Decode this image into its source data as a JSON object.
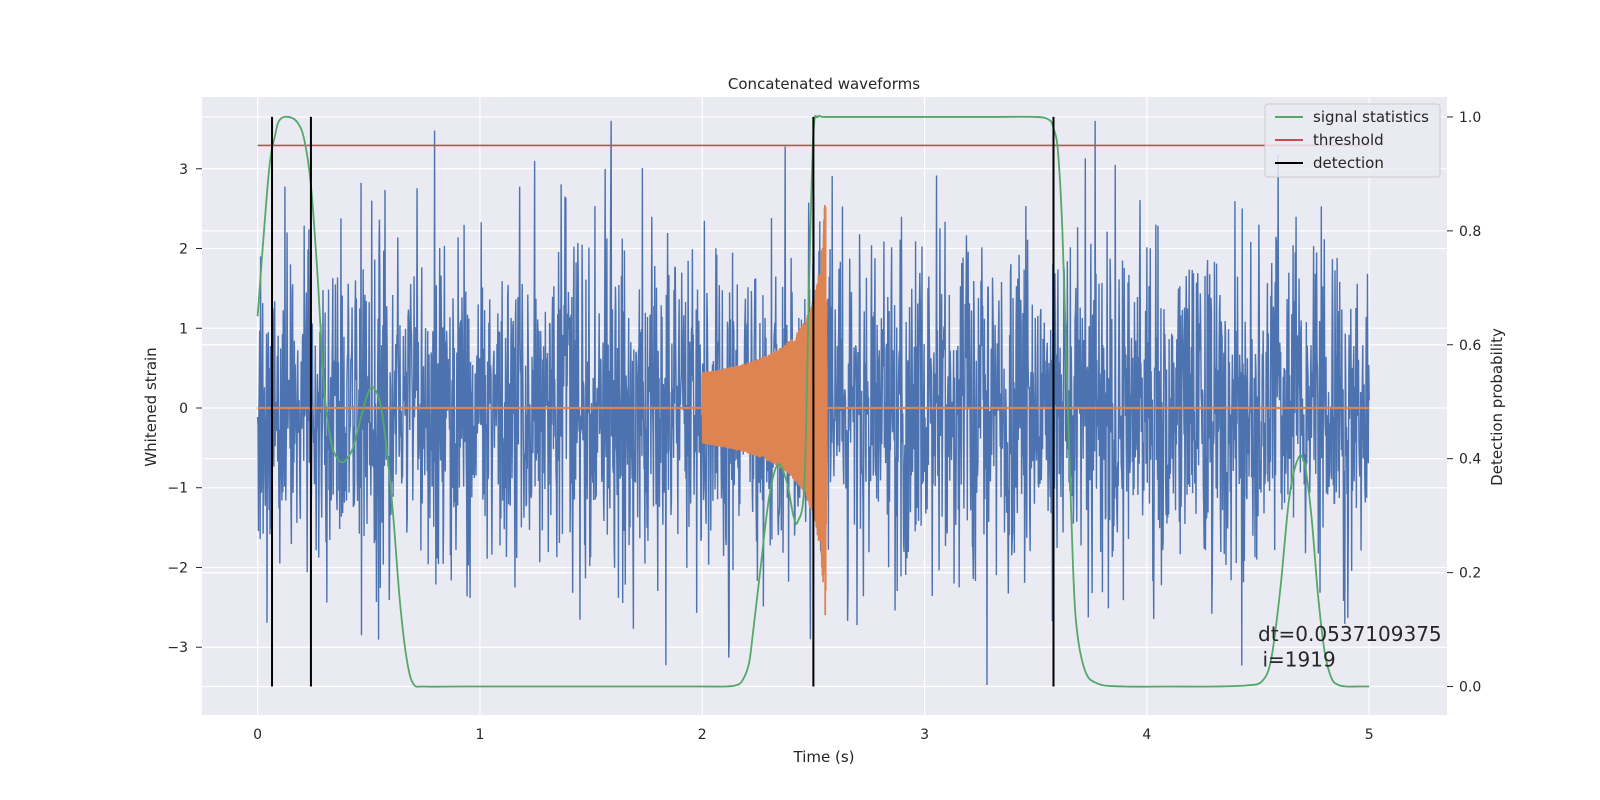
{
  "chart_data": {
    "type": "line",
    "title": "Concatenated waveforms",
    "xlabel": "Time (s)",
    "ylabel": "Whitened strain",
    "ylabel_right": "Detection probability",
    "xlim": [
      -0.25,
      5.35
    ],
    "ylim": [
      -3.85,
      3.9
    ],
    "ylim_right": [
      -0.05,
      1.035
    ],
    "grid": true,
    "x_ticks": [
      0,
      1,
      2,
      3,
      4,
      5
    ],
    "y_ticks": [
      -3,
      -2,
      -1,
      0,
      1,
      2,
      3
    ],
    "y_ticks_right": [
      0.0,
      0.2,
      0.4,
      0.6,
      0.8,
      1.0
    ],
    "legend_position": "top-right",
    "colors": {
      "strain": "#4c72b0",
      "template": "#dd8452",
      "statistic": "#55a868",
      "threshold": "#c44e52",
      "detection": "#000000",
      "plot_bg": "#eaeaf2",
      "grid": "#ffffff"
    },
    "series": [
      {
        "name": "signal statistics",
        "axis": "right",
        "color": "#55a868",
        "x": [
          0,
          0.05,
          0.08,
          0.1,
          0.14,
          0.18,
          0.21,
          0.24,
          0.27,
          0.3,
          0.33,
          0.36,
          0.39,
          0.43,
          0.47,
          0.51,
          0.55,
          0.58,
          0.61,
          0.64,
          0.67,
          0.7,
          0.75,
          0.9,
          1.2,
          1.6,
          2.0,
          2.1,
          2.15,
          2.18,
          2.21,
          2.23,
          2.26,
          2.3,
          2.34,
          2.38,
          2.41,
          2.43,
          2.46,
          2.48,
          2.5,
          2.52,
          2.55,
          2.7,
          3.0,
          3.3,
          3.5,
          3.56,
          3.58,
          3.6,
          3.62,
          3.64,
          3.66,
          3.68,
          3.72,
          3.78,
          3.9,
          4.1,
          4.3,
          4.45,
          4.52,
          4.56,
          4.6,
          4.64,
          4.68,
          4.71,
          4.74,
          4.77,
          4.8,
          4.83,
          4.86,
          4.9,
          4.95,
          5.0
        ],
        "values": [
          0.65,
          0.9,
          0.97,
          0.995,
          1.0,
          0.99,
          0.96,
          0.88,
          0.72,
          0.52,
          0.43,
          0.4,
          0.395,
          0.42,
          0.48,
          0.525,
          0.5,
          0.42,
          0.3,
          0.15,
          0.05,
          0.005,
          0.0,
          0.0,
          0.0,
          0.0,
          0.0,
          0.0,
          0.002,
          0.01,
          0.04,
          0.1,
          0.2,
          0.33,
          0.39,
          0.36,
          0.3,
          0.29,
          0.36,
          0.7,
          0.97,
          1.0,
          1.0,
          1.0,
          1.0,
          1.0,
          1.0,
          0.995,
          0.98,
          0.94,
          0.8,
          0.55,
          0.3,
          0.12,
          0.03,
          0.005,
          0.0,
          0.0,
          0.0,
          0.002,
          0.01,
          0.05,
          0.17,
          0.33,
          0.4,
          0.39,
          0.3,
          0.16,
          0.06,
          0.015,
          0.003,
          0.0,
          0.0,
          0.0
        ]
      },
      {
        "name": "threshold",
        "axis": "right",
        "color": "#c44e52",
        "x": [
          0,
          5.0
        ],
        "values": [
          0.95,
          0.95
        ]
      },
      {
        "name": "detection",
        "axis": "right",
        "color": "#000000",
        "type": "vlines",
        "x": [
          0.065,
          0.24,
          2.5,
          3.58
        ],
        "range": [
          0.0,
          1.0
        ]
      },
      {
        "axis": "left",
        "color": "#4c72b0",
        "description_kind": "noise",
        "x_range": [
          0,
          5.0
        ],
        "envelope_sigma": 1.05,
        "peak_range": [
          -3.5,
          3.6
        ]
      },
      {
        "axis": "left",
        "color": "#dd8452",
        "description_kind": "chirp",
        "x_range": [
          2.0,
          2.56
        ],
        "amplitude_start": 0.45,
        "amplitude_peak": 2.6,
        "peak_x": 2.555,
        "baseline_value": 0
      }
    ],
    "annotations": [
      {
        "text": "dt=0.0537109375",
        "x": 4.5,
        "y": 0.08
      },
      {
        "text": "i=1919",
        "x": 4.52,
        "y": 0.035
      }
    ]
  }
}
